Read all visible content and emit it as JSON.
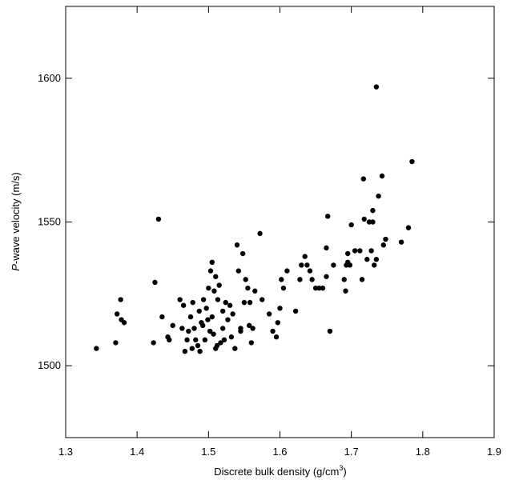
{
  "chart_data": {
    "type": "scatter",
    "xlabel": "Discrete bulk density (g/cm",
    "xlabel_sup": "3",
    "xlabel_end": ")",
    "ylabel_italic": "P",
    "ylabel": "-wave velocity (m/s)",
    "xlim": [
      1.3,
      1.9
    ],
    "xticks": [
      1.3,
      1.4,
      1.5,
      1.6,
      1.7,
      1.8,
      1.9
    ],
    "ylim": [
      1475,
      1625
    ],
    "yticks": [
      1500,
      1550,
      1600
    ],
    "color": "#000000",
    "x": [
      1.343,
      1.37,
      1.372,
      1.377,
      1.378,
      1.382,
      1.423,
      1.425,
      1.43,
      1.435,
      1.443,
      1.445,
      1.45,
      1.46,
      1.463,
      1.465,
      1.467,
      1.47,
      1.472,
      1.475,
      1.477,
      1.478,
      1.48,
      1.482,
      1.485,
      1.487,
      1.488,
      1.49,
      1.492,
      1.493,
      1.495,
      1.497,
      1.499,
      1.5,
      1.502,
      1.503,
      1.505,
      1.505,
      1.507,
      1.508,
      1.51,
      1.51,
      1.512,
      1.513,
      1.515,
      1.517,
      1.52,
      1.52,
      1.522,
      1.524,
      1.527,
      1.53,
      1.532,
      1.534,
      1.537,
      1.54,
      1.542,
      1.545,
      1.545,
      1.548,
      1.55,
      1.552,
      1.555,
      1.557,
      1.558,
      1.56,
      1.562,
      1.565,
      1.572,
      1.575,
      1.585,
      1.59,
      1.595,
      1.597,
      1.6,
      1.602,
      1.605,
      1.61,
      1.622,
      1.628,
      1.63,
      1.635,
      1.638,
      1.642,
      1.645,
      1.65,
      1.655,
      1.66,
      1.665,
      1.665,
      1.667,
      1.67,
      1.675,
      1.69,
      1.692,
      1.693,
      1.695,
      1.695,
      1.698,
      1.7,
      1.705,
      1.712,
      1.715,
      1.717,
      1.718,
      1.722,
      1.725,
      1.728,
      1.73,
      1.73,
      1.732,
      1.735,
      1.735,
      1.738,
      1.743,
      1.745,
      1.748,
      1.77,
      1.78,
      1.785
    ],
    "values": [
      1506,
      1508,
      1518,
      1523,
      1516,
      1515,
      1508,
      1529,
      1551,
      1517,
      1510,
      1509,
      1514,
      1523,
      1513,
      1521,
      1505,
      1509,
      1512,
      1517,
      1506,
      1522,
      1513,
      1509,
      1507,
      1519,
      1505,
      1515,
      1514,
      1523,
      1509,
      1520,
      1516,
      1527,
      1512,
      1533,
      1536,
      1517,
      1511,
      1526,
      1506,
      1531,
      1507,
      1523,
      1528,
      1508,
      1513,
      1519,
      1509,
      1522,
      1516,
      1521,
      1510,
      1518,
      1506,
      1542,
      1533,
      1513,
      1512,
      1539,
      1522,
      1530,
      1527,
      1514,
      1522,
      1508,
      1513,
      1526,
      1546,
      1523,
      1518,
      1512,
      1510,
      1515,
      1520,
      1530,
      1527,
      1533,
      1519,
      1530,
      1535,
      1538,
      1535,
      1533,
      1530,
      1527,
      1527,
      1527,
      1541,
      1531,
      1552,
      1512,
      1535,
      1530,
      1526,
      1535,
      1539,
      1536,
      1535,
      1549,
      1540,
      1540,
      1530,
      1565,
      1551,
      1537,
      1550,
      1540,
      1554,
      1550,
      1535,
      1597,
      1537,
      1559,
      1566,
      1542,
      1544,
      1543,
      1548,
      1571
    ]
  }
}
